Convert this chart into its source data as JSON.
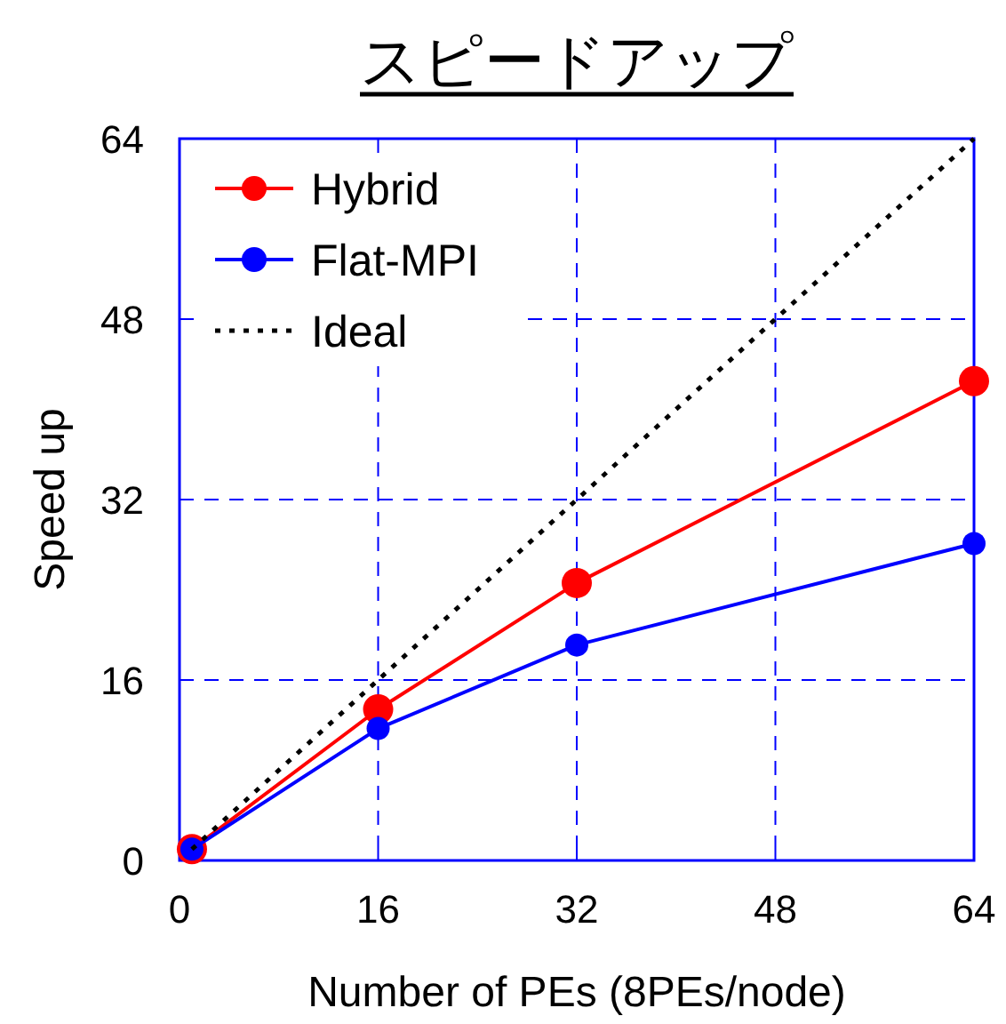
{
  "chart_data": {
    "type": "line",
    "title": "スピードアップ",
    "xlabel": "Number of PEs (8PEs/node)",
    "ylabel": "Speed up",
    "xlim": [
      0,
      64
    ],
    "xticks": [
      0,
      16,
      32,
      48,
      64
    ],
    "ylim": [
      0,
      64
    ],
    "yticks": [
      0,
      16,
      32,
      48,
      64
    ],
    "grid": true,
    "legend": "top left",
    "series": [
      {
        "name": "Hybrid",
        "color": "#ff0000",
        "marker": "circle",
        "line_style": "solid",
        "x": [
          1,
          16,
          32,
          64
        ],
        "values": [
          1,
          13.4,
          24.6,
          42.5
        ]
      },
      {
        "name": "Flat-MPI",
        "color": "#0000ff",
        "marker": "circle",
        "line_style": "solid",
        "x": [
          1,
          16,
          32,
          64
        ],
        "values": [
          1,
          11.7,
          19.1,
          28.1
        ]
      },
      {
        "name": "Ideal",
        "color": "#000000",
        "marker": "none",
        "line_style": "dotted",
        "x": [
          1,
          64
        ],
        "values": [
          1,
          64
        ]
      }
    ]
  }
}
